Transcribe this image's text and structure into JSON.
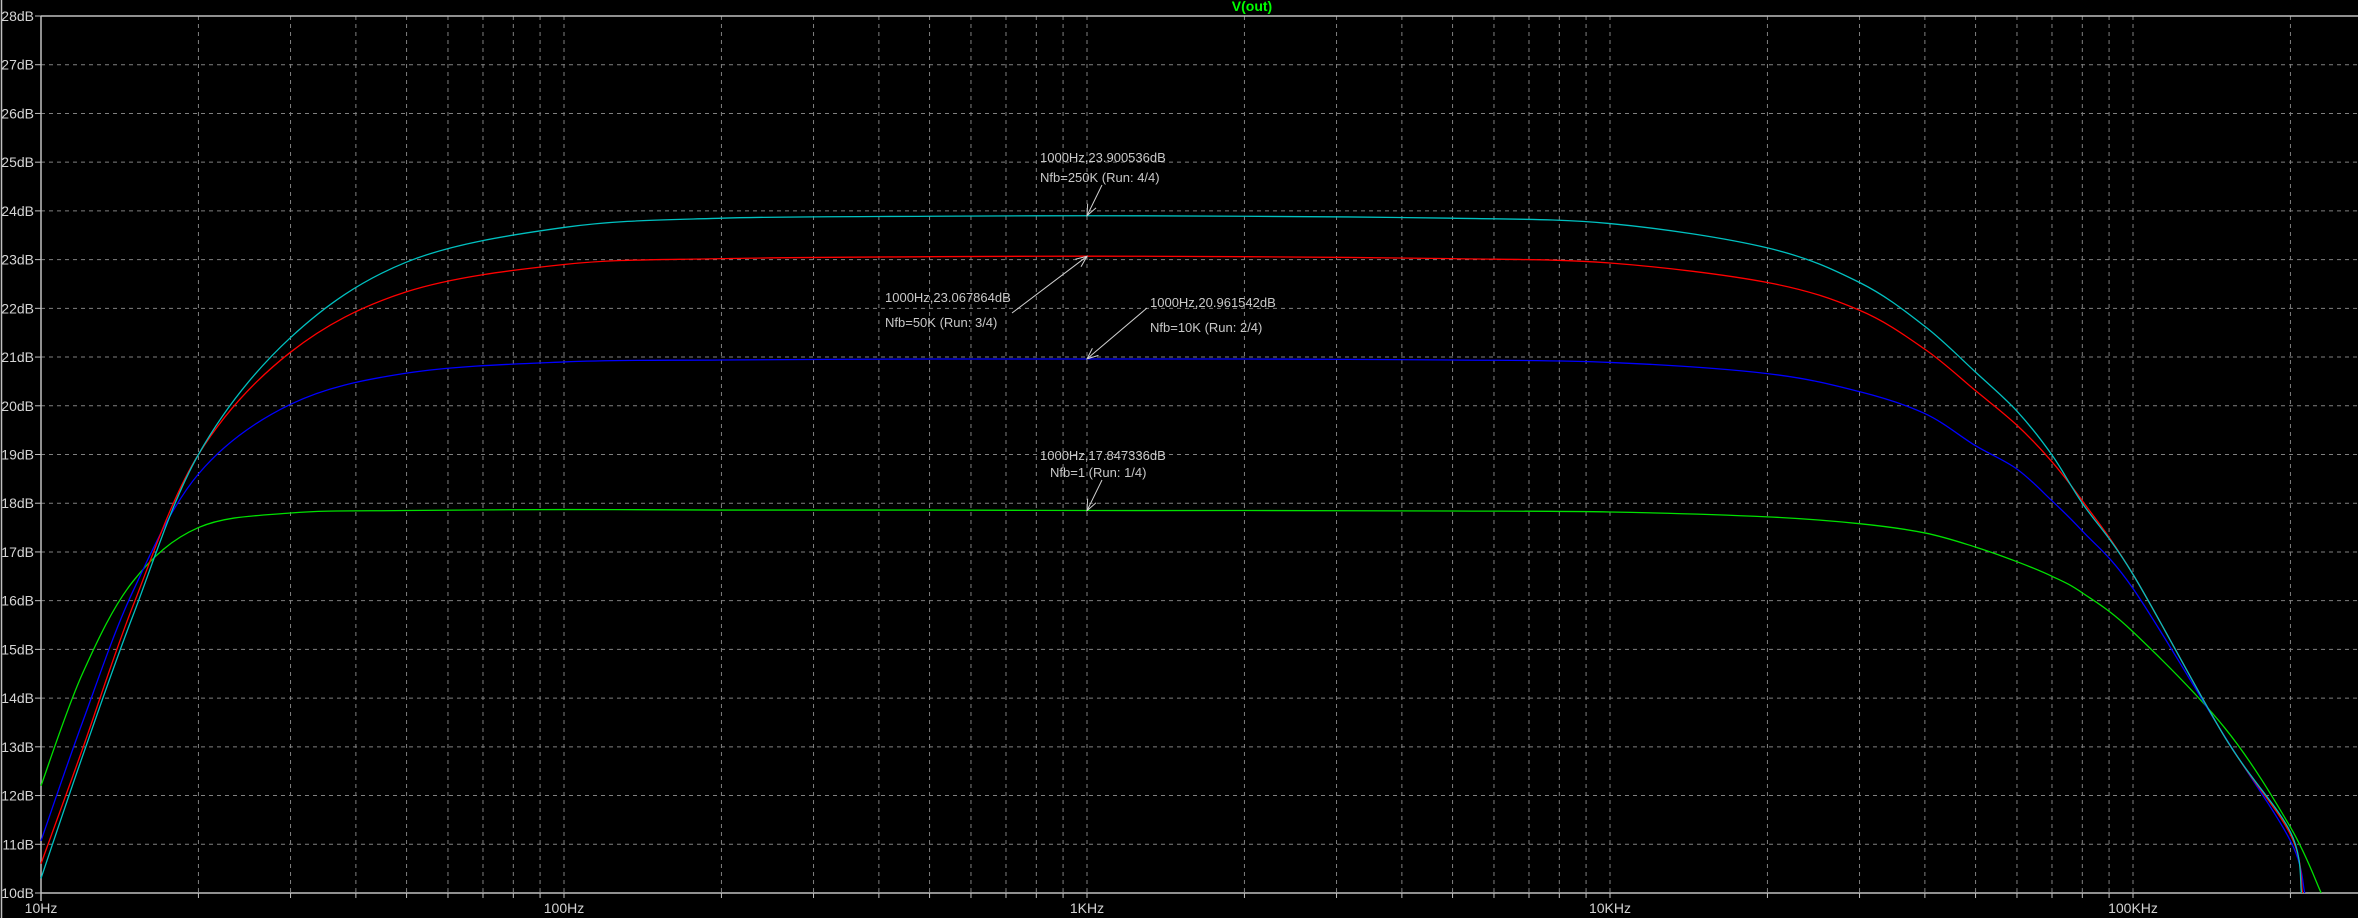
{
  "chart_data": {
    "type": "line",
    "title": "V(out)",
    "title_color": "#00ff00",
    "xlabel": "",
    "ylabel": "",
    "x_scale": "log",
    "xlim": [
      10,
      270000
    ],
    "ylim": [
      10,
      28
    ],
    "grid": true,
    "background": "#000000",
    "x_ticks": [
      {
        "value": 10,
        "label": "10Hz"
      },
      {
        "value": 100,
        "label": "100Hz"
      },
      {
        "value": 1000,
        "label": "1KHz"
      },
      {
        "value": 10000,
        "label": "10KHz"
      },
      {
        "value": 100000,
        "label": "100KHz"
      }
    ],
    "y_ticks": [
      {
        "value": 10,
        "label": "10dB"
      },
      {
        "value": 11,
        "label": "11dB"
      },
      {
        "value": 12,
        "label": "12dB"
      },
      {
        "value": 13,
        "label": "13dB"
      },
      {
        "value": 14,
        "label": "14dB"
      },
      {
        "value": 15,
        "label": "15dB"
      },
      {
        "value": 16,
        "label": "16dB"
      },
      {
        "value": 17,
        "label": "17dB"
      },
      {
        "value": 18,
        "label": "18dB"
      },
      {
        "value": 19,
        "label": "19dB"
      },
      {
        "value": 20,
        "label": "20dB"
      },
      {
        "value": 21,
        "label": "21dB"
      },
      {
        "value": 22,
        "label": "22dB"
      },
      {
        "value": 23,
        "label": "23dB"
      },
      {
        "value": 24,
        "label": "24dB"
      },
      {
        "value": 25,
        "label": "25dB"
      },
      {
        "value": 26,
        "label": "26dB"
      },
      {
        "value": 27,
        "label": "27dB"
      },
      {
        "value": 28,
        "label": "28dB"
      }
    ],
    "series": [
      {
        "color": "#00e000",
        "points": [
          [
            10,
            12.2
          ],
          [
            12,
            14.5
          ],
          [
            15,
            16.4
          ],
          [
            20,
            17.5
          ],
          [
            30,
            17.8
          ],
          [
            50,
            17.85
          ],
          [
            100,
            17.87
          ],
          [
            200,
            17.86
          ],
          [
            500,
            17.86
          ],
          [
            1000,
            17.85
          ],
          [
            2000,
            17.85
          ],
          [
            5000,
            17.84
          ],
          [
            10000,
            17.82
          ],
          [
            20000,
            17.72
          ],
          [
            30000,
            17.58
          ],
          [
            40000,
            17.39
          ],
          [
            50000,
            17.1
          ],
          [
            60000,
            16.8
          ],
          [
            70000,
            16.5
          ],
          [
            80000,
            16.16
          ],
          [
            100000,
            15.36
          ],
          [
            150000,
            13.38
          ],
          [
            200000,
            11.35
          ],
          [
            229000,
            10
          ]
        ]
      },
      {
        "color": "#0000ff",
        "points": [
          [
            10,
            11.07
          ],
          [
            12,
            13.5
          ],
          [
            15,
            16.2
          ],
          [
            20,
            18.6
          ],
          [
            30,
            20.03
          ],
          [
            50,
            20.67
          ],
          [
            100,
            20.9
          ],
          [
            200,
            20.94
          ],
          [
            500,
            20.96
          ],
          [
            1000,
            20.96
          ],
          [
            2000,
            20.96
          ],
          [
            5000,
            20.94
          ],
          [
            10000,
            20.89
          ],
          [
            20000,
            20.66
          ],
          [
            30000,
            20.29
          ],
          [
            40000,
            19.84
          ],
          [
            50000,
            19.18
          ],
          [
            60000,
            18.7
          ],
          [
            70000,
            18.05
          ],
          [
            80000,
            17.43
          ],
          [
            100000,
            16.25
          ],
          [
            150000,
            13.2
          ],
          [
            200000,
            11.07
          ],
          [
            213000,
            10
          ]
        ]
      },
      {
        "color": "#ff0000",
        "points": [
          [
            10,
            10.6
          ],
          [
            12,
            12.95
          ],
          [
            15,
            15.9
          ],
          [
            20,
            19.0
          ],
          [
            30,
            21.1
          ],
          [
            50,
            22.34
          ],
          [
            100,
            22.9
          ],
          [
            200,
            23.02
          ],
          [
            500,
            23.06
          ],
          [
            1000,
            23.07
          ],
          [
            2000,
            23.06
          ],
          [
            5000,
            23.02
          ],
          [
            10000,
            22.93
          ],
          [
            20000,
            22.53
          ],
          [
            30000,
            21.96
          ],
          [
            40000,
            21.16
          ],
          [
            50000,
            20.31
          ],
          [
            60000,
            19.6
          ],
          [
            70000,
            18.85
          ],
          [
            80000,
            18.05
          ],
          [
            100000,
            16.54
          ],
          [
            150000,
            13.19
          ],
          [
            200000,
            11.2
          ],
          [
            211000,
            10
          ]
        ]
      },
      {
        "color": "#00c0c0",
        "points": [
          [
            10,
            10.3
          ],
          [
            12,
            12.8
          ],
          [
            15,
            15.7
          ],
          [
            20,
            19.0
          ],
          [
            30,
            21.4
          ],
          [
            50,
            22.95
          ],
          [
            100,
            23.66
          ],
          [
            200,
            23.85
          ],
          [
            500,
            23.89
          ],
          [
            1000,
            23.9
          ],
          [
            2000,
            23.89
          ],
          [
            5000,
            23.85
          ],
          [
            10000,
            23.74
          ],
          [
            20000,
            23.24
          ],
          [
            30000,
            22.53
          ],
          [
            40000,
            21.63
          ],
          [
            50000,
            20.69
          ],
          [
            60000,
            19.89
          ],
          [
            70000,
            18.99
          ],
          [
            80000,
            18.0
          ],
          [
            100000,
            16.54
          ],
          [
            150000,
            13.19
          ],
          [
            200000,
            11.25
          ],
          [
            210000,
            10
          ]
        ]
      }
    ],
    "annotations": [
      {
        "line1": "1000Hz,23.900536dB",
        "line2": "Nfb=250K  (Run: 4/4)",
        "x": 1000,
        "y": 23.900536
      },
      {
        "line1": "1000Hz,23.067864dB",
        "line2": "Nfb=50K  (Run: 3/4)",
        "x": 1000,
        "y": 23.067864
      },
      {
        "line1": "1000Hz,20.961542dB",
        "line2": "Nfb=10K  (Run: 2/4)",
        "x": 1000,
        "y": 20.961542
      },
      {
        "line1": "1000Hz,17.847336dB",
        "line2": "Nfb=1  (Run: 1/4)",
        "x": 1000,
        "y": 17.847336
      }
    ]
  }
}
